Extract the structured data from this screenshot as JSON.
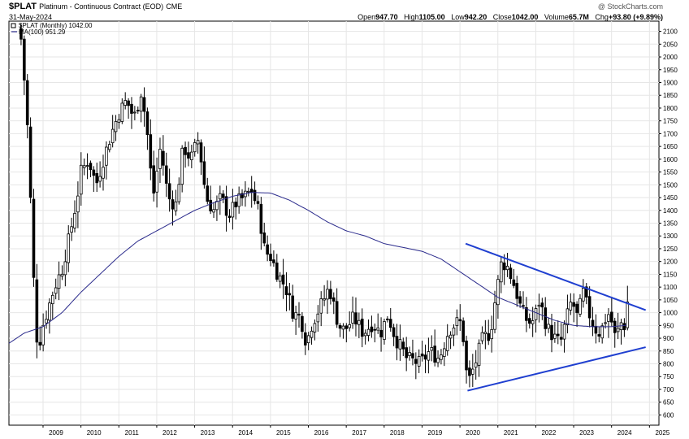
{
  "header": {
    "symbol": "$PLAT",
    "description": "Platinum - Continuous Contract (EOD)",
    "exchange": "CME",
    "date": "31-May-2024",
    "watermark": "@ StockCharts.com",
    "open_label": "Open",
    "open": "947.70",
    "high_label": "High",
    "high": "1105.00",
    "low_label": "Low",
    "low": "942.20",
    "close_label": "Close",
    "close": "1042.00",
    "volume_label": "Volume",
    "volume": "65.7M",
    "chg_label": "Chg",
    "chg": "+93.80 (+9.89%)",
    "legend_price": "$PLAT (Monthly) 1042.00",
    "legend_ma": "MA(100) 951.29",
    "colors": {
      "up": "#000000",
      "down": "#000000",
      "ma": "#2b2b8c",
      "trend": "#1f3fd0"
    }
  },
  "chart_data": {
    "type": "candlestick",
    "title": "$PLAT Platinum - Continuous Contract (EOD) CME",
    "frequency": "monthly",
    "xlim": [
      2008.1,
      2025.25
    ],
    "ylim": [
      560,
      2140
    ],
    "x_ticks": [
      2009,
      2010,
      2011,
      2012,
      2013,
      2014,
      2015,
      2016,
      2017,
      2018,
      2019,
      2020,
      2021,
      2022,
      2023,
      2024,
      2025
    ],
    "y_ticks": [
      600,
      650,
      700,
      750,
      800,
      850,
      900,
      950,
      1000,
      1050,
      1100,
      1150,
      1200,
      1250,
      1300,
      1350,
      1400,
      1450,
      1500,
      1550,
      1600,
      1650,
      1700,
      1750,
      1800,
      1850,
      1900,
      1950,
      2000,
      2050,
      2100
    ],
    "grid": true,
    "close_anchors": [
      [
        2008.42,
        2070
      ],
      [
        2008.5,
        1920
      ],
      [
        2008.6,
        1700
      ],
      [
        2008.7,
        1330
      ],
      [
        2008.8,
        950
      ],
      [
        2008.88,
        850
      ],
      [
        2008.95,
        930
      ],
      [
        2009.1,
        1000
      ],
      [
        2009.3,
        1100
      ],
      [
        2009.5,
        1170
      ],
      [
        2009.7,
        1300
      ],
      [
        2009.9,
        1450
      ],
      [
        2010.0,
        1550
      ],
      [
        2010.2,
        1600
      ],
      [
        2010.4,
        1500
      ],
      [
        2010.55,
        1580
      ],
      [
        2010.8,
        1700
      ],
      [
        2011.0,
        1780
      ],
      [
        2011.2,
        1830
      ],
      [
        2011.4,
        1760
      ],
      [
        2011.6,
        1870
      ],
      [
        2011.75,
        1700
      ],
      [
        2011.9,
        1450
      ],
      [
        2012.1,
        1650
      ],
      [
        2012.3,
        1450
      ],
      [
        2012.5,
        1420
      ],
      [
        2012.7,
        1650
      ],
      [
        2012.9,
        1600
      ],
      [
        2013.1,
        1680
      ],
      [
        2013.3,
        1450
      ],
      [
        2013.5,
        1400
      ],
      [
        2013.7,
        1450
      ],
      [
        2013.9,
        1380
      ],
      [
        2014.1,
        1430
      ],
      [
        2014.3,
        1450
      ],
      [
        2014.5,
        1480
      ],
      [
        2014.7,
        1390
      ],
      [
        2014.85,
        1240
      ],
      [
        2015.0,
        1220
      ],
      [
        2015.2,
        1150
      ],
      [
        2015.4,
        1100
      ],
      [
        2015.6,
        1000
      ],
      [
        2015.8,
        980
      ],
      [
        2015.95,
        880
      ],
      [
        2016.1,
        960
      ],
      [
        2016.4,
        1050
      ],
      [
        2016.55,
        1100
      ],
      [
        2016.8,
        950
      ],
      [
        2016.95,
        930
      ],
      [
        2017.2,
        980
      ],
      [
        2017.45,
        920
      ],
      [
        2017.7,
        960
      ],
      [
        2017.9,
        920
      ],
      [
        2018.1,
        990
      ],
      [
        2018.3,
        900
      ],
      [
        2018.6,
        820
      ],
      [
        2018.8,
        810
      ],
      [
        2018.95,
        800
      ],
      [
        2019.2,
        850
      ],
      [
        2019.45,
        820
      ],
      [
        2019.7,
        930
      ],
      [
        2019.9,
        960
      ],
      [
        2020.05,
        960
      ],
      [
        2020.2,
        720
      ],
      [
        2020.4,
        800
      ],
      [
        2020.6,
        900
      ],
      [
        2020.8,
        920
      ],
      [
        2020.95,
        1070
      ],
      [
        2021.1,
        1200
      ],
      [
        2021.25,
        1180
      ],
      [
        2021.45,
        1100
      ],
      [
        2021.6,
        1020
      ],
      [
        2021.8,
        960
      ],
      [
        2021.95,
        970
      ],
      [
        2022.1,
        1050
      ],
      [
        2022.3,
        940
      ],
      [
        2022.5,
        900
      ],
      [
        2022.65,
        880
      ],
      [
        2022.8,
        970
      ],
      [
        2022.95,
        1050
      ],
      [
        2023.1,
        980
      ],
      [
        2023.25,
        1080
      ],
      [
        2023.4,
        1000
      ],
      [
        2023.55,
        940
      ],
      [
        2023.7,
        920
      ],
      [
        2023.85,
        980
      ],
      [
        2023.95,
        1000
      ],
      [
        2024.1,
        900
      ],
      [
        2024.25,
        960
      ],
      [
        2024.35,
        948
      ],
      [
        2024.42,
        1042
      ]
    ],
    "ma_anchors": [
      [
        2008.1,
        880
      ],
      [
        2008.5,
        920
      ],
      [
        2009.0,
        945
      ],
      [
        2009.5,
        1000
      ],
      [
        2010.0,
        1080
      ],
      [
        2010.5,
        1150
      ],
      [
        2011.0,
        1220
      ],
      [
        2011.5,
        1280
      ],
      [
        2012.0,
        1320
      ],
      [
        2012.5,
        1360
      ],
      [
        2013.0,
        1400
      ],
      [
        2013.5,
        1430
      ],
      [
        2014.0,
        1455
      ],
      [
        2014.5,
        1470
      ],
      [
        2015.0,
        1468
      ],
      [
        2015.5,
        1440
      ],
      [
        2016.0,
        1400
      ],
      [
        2016.5,
        1355
      ],
      [
        2017.0,
        1320
      ],
      [
        2017.5,
        1300
      ],
      [
        2018.0,
        1270
      ],
      [
        2018.5,
        1255
      ],
      [
        2019.0,
        1240
      ],
      [
        2019.5,
        1210
      ],
      [
        2020.0,
        1160
      ],
      [
        2020.5,
        1110
      ],
      [
        2021.0,
        1060
      ],
      [
        2021.5,
        1030
      ],
      [
        2022.0,
        1000
      ],
      [
        2022.5,
        970
      ],
      [
        2023.0,
        950
      ],
      [
        2023.5,
        945
      ],
      [
        2024.0,
        945
      ],
      [
        2024.42,
        951
      ]
    ],
    "trendlines": [
      {
        "from": [
          2020.15,
          1270
        ],
        "to": [
          2024.9,
          1010
        ]
      },
      {
        "from": [
          2020.2,
          695
        ],
        "to": [
          2024.9,
          865
        ]
      }
    ],
    "last_close": 1042.0,
    "ma_last": 951.29
  }
}
